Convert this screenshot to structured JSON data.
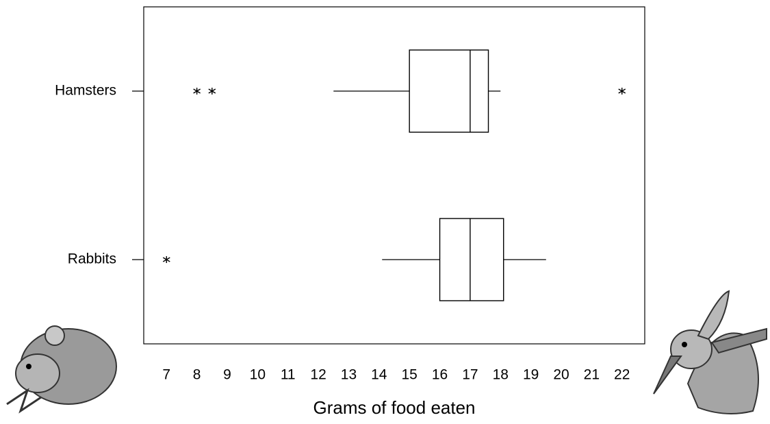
{
  "chart_data": {
    "type": "box",
    "xlabel": "Grams of food eaten",
    "xlim": [
      6.25,
      22.75
    ],
    "xticks": [
      7,
      8,
      9,
      10,
      11,
      12,
      13,
      14,
      15,
      16,
      17,
      18,
      19,
      20,
      21,
      22
    ],
    "color": "#000000",
    "boxes": [
      {
        "name": "Hamsters",
        "whisker_low": 12.5,
        "q1": 15,
        "median": 17,
        "q3": 17.6,
        "whisker_high": 18,
        "outliers": [
          8,
          8.5,
          22
        ]
      },
      {
        "name": "Rabbits",
        "whisker_low": 14.1,
        "q1": 16,
        "median": 17,
        "q3": 18.1,
        "whisker_high": 19.5,
        "outliers": [
          7
        ]
      }
    ]
  }
}
